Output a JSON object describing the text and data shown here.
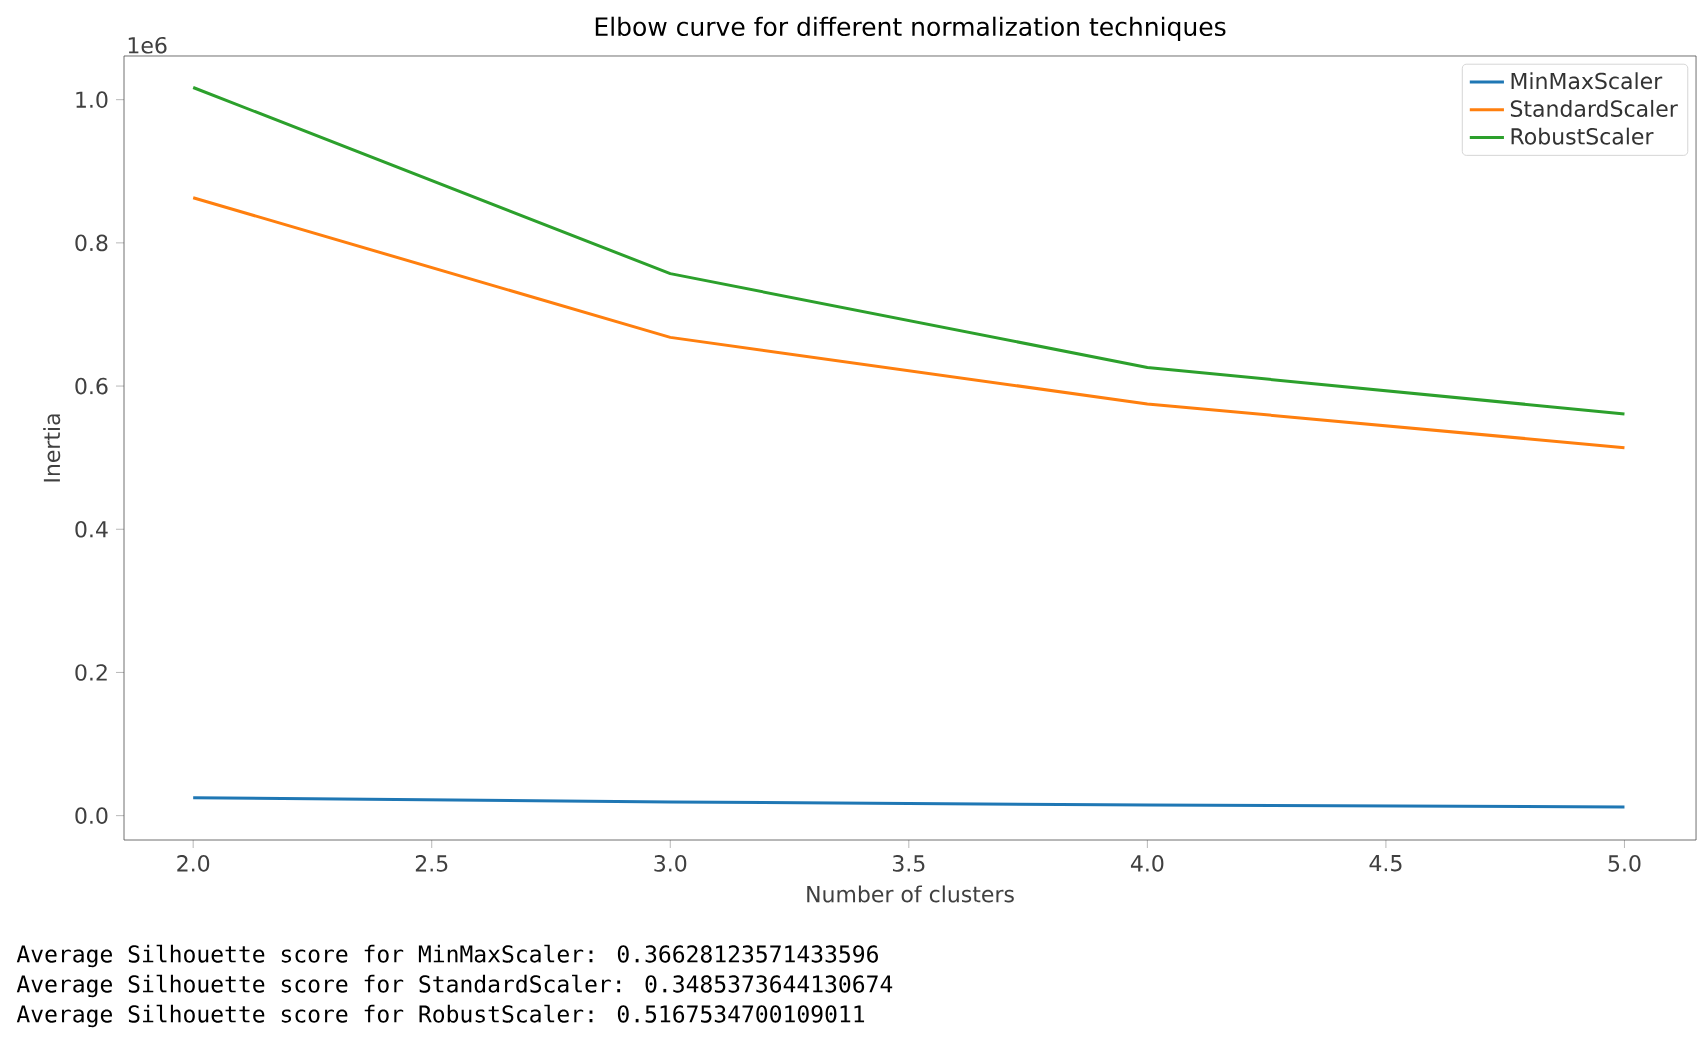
{
  "chart_data": {
    "type": "line",
    "title": "Elbow curve for different normalization techniques",
    "xlabel": "Number of clusters",
    "ylabel": "Inertia",
    "x": [
      2,
      3,
      4,
      5
    ],
    "series": [
      {
        "name": "MinMaxScaler",
        "color": "#1f77b4",
        "values": [
          0.025,
          0.019,
          0.015,
          0.012
        ]
      },
      {
        "name": "StandardScaler",
        "color": "#ff7f0e",
        "values": [
          0.863,
          0.668,
          0.575,
          0.514
        ]
      },
      {
        "name": "RobustScaler",
        "color": "#2ca02c",
        "values": [
          1.017,
          0.757,
          0.626,
          0.561
        ]
      }
    ],
    "xlim": [
      1.855,
      5.15
    ],
    "ylim": [
      -0.034,
      1.061
    ],
    "xticks": [
      {
        "value": 2,
        "label": "2.0"
      },
      {
        "value": 2.5,
        "label": "2.5"
      },
      {
        "value": 3,
        "label": "3.0"
      },
      {
        "value": 3.5,
        "label": "3.5"
      },
      {
        "value": 4,
        "label": "4.0"
      },
      {
        "value": 4.5,
        "label": "4.5"
      },
      {
        "value": 5,
        "label": "5.0"
      }
    ],
    "yticks": [
      {
        "value": 0,
        "label": "0.0"
      },
      {
        "value": 0.2,
        "label": "0.2"
      },
      {
        "value": 0.4,
        "label": "0.4"
      },
      {
        "value": 0.6,
        "label": "0.6"
      },
      {
        "value": 0.8,
        "label": "0.8"
      },
      {
        "value": 1.0,
        "label": "1.0"
      }
    ],
    "legend": "top right",
    "grid": false,
    "annotations": [
      "1e6",
      "Average Silhouette score for MinMaxScaler: 0.36628123571433596",
      "Average Silhouette score for StandardScaler: 0.3485373644130674",
      "Average Silhouette score for RobustScaler: 0.5167534700109011"
    ]
  }
}
